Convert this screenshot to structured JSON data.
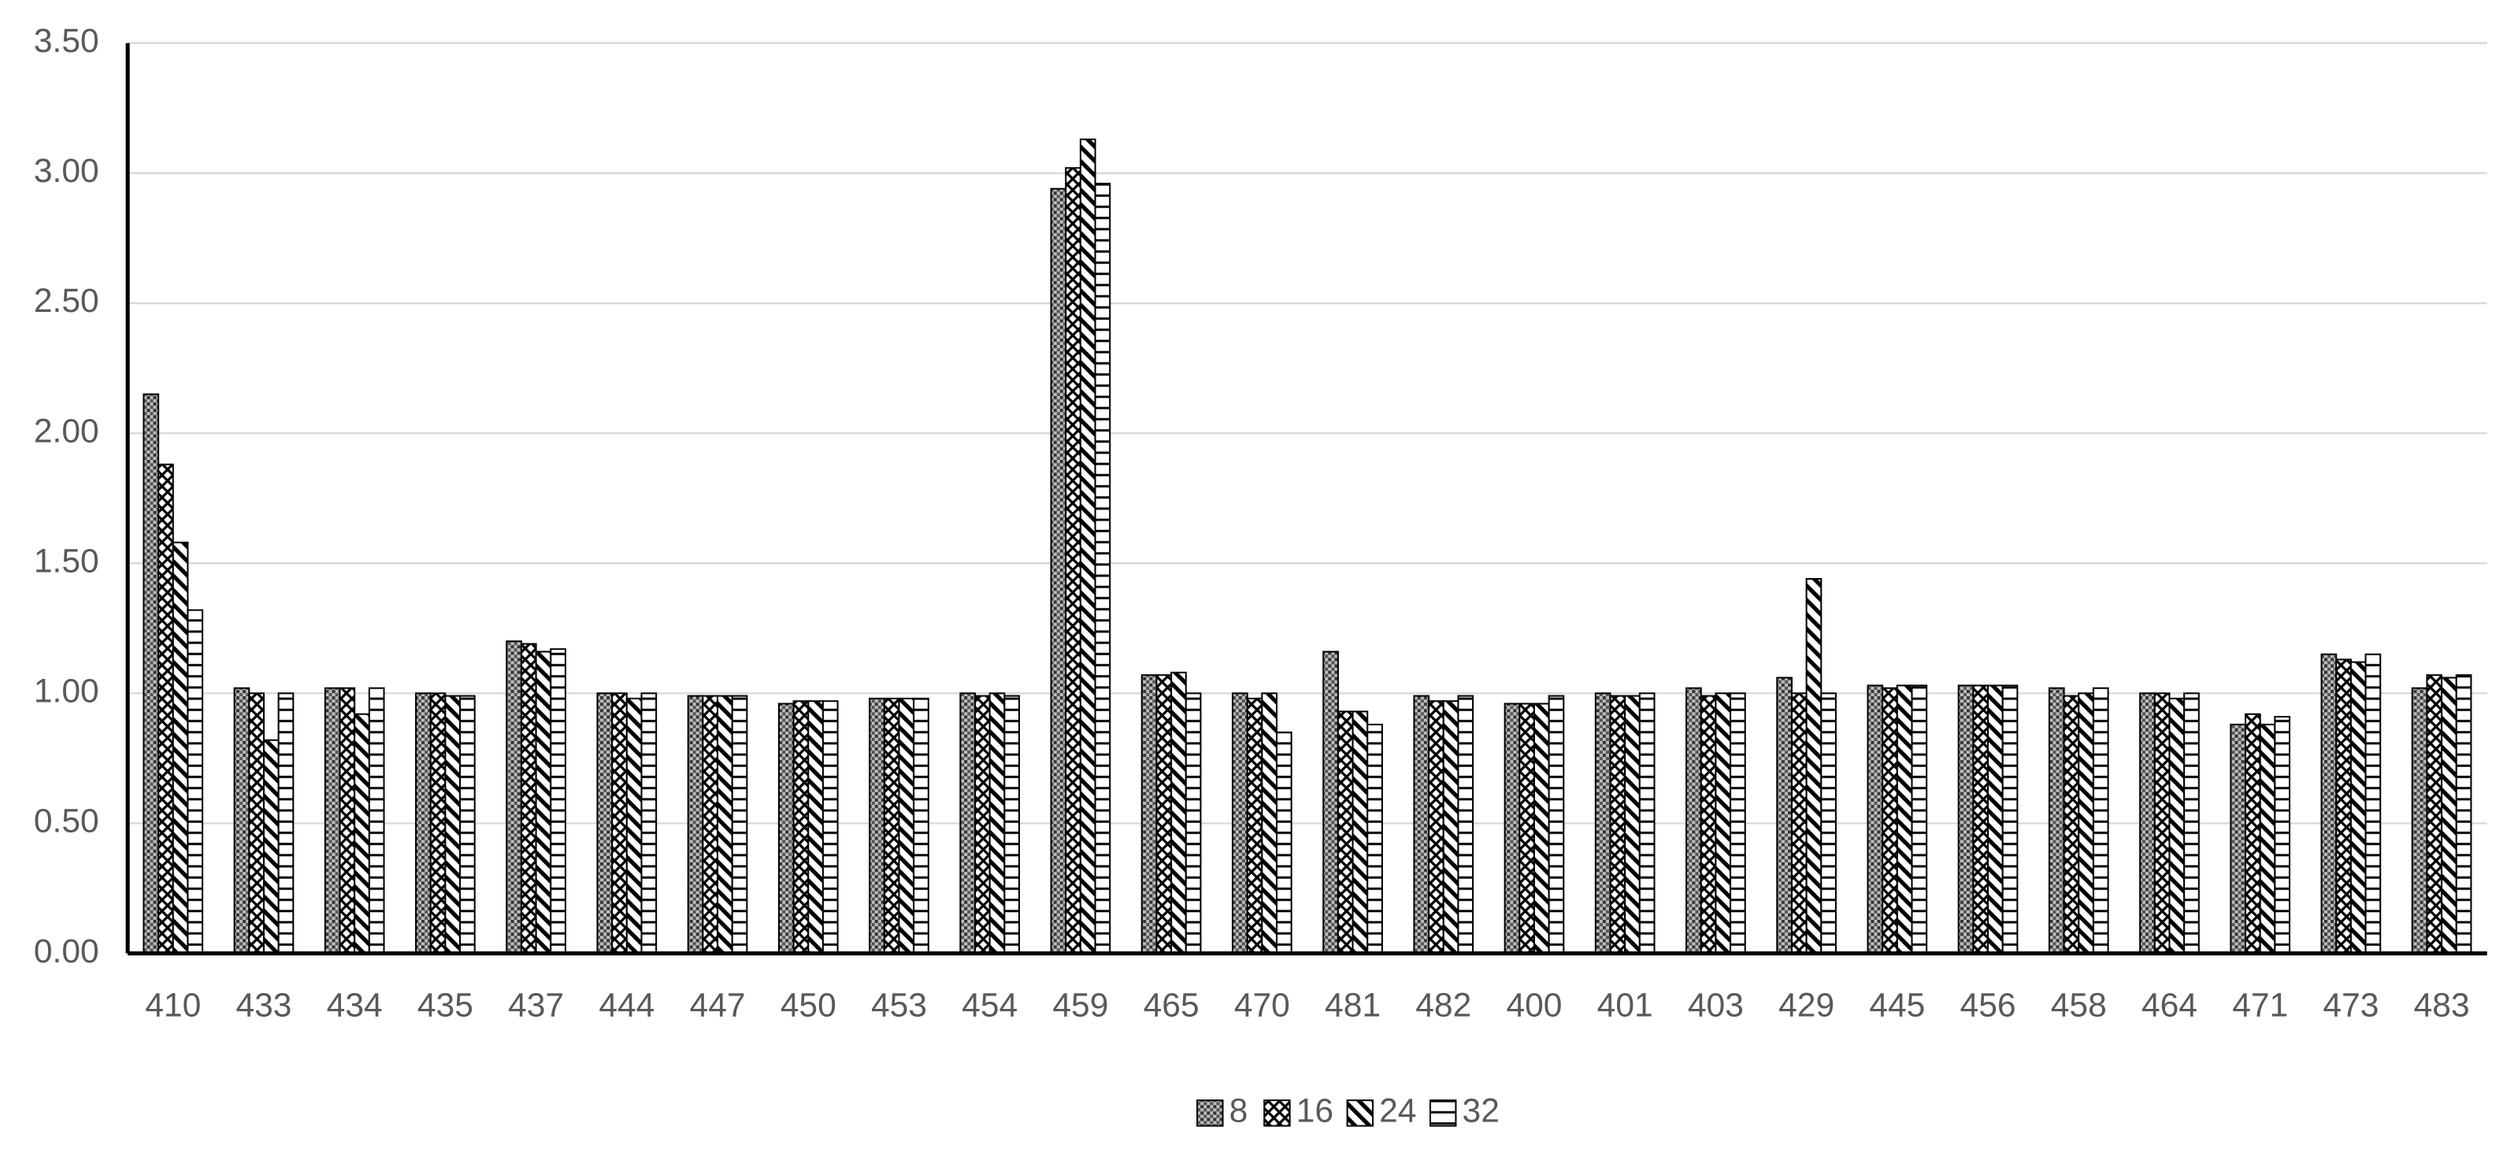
{
  "chart_data": {
    "type": "bar",
    "categories": [
      "410",
      "433",
      "434",
      "435",
      "437",
      "444",
      "447",
      "450",
      "453",
      "454",
      "459",
      "465",
      "470",
      "481",
      "482",
      "400",
      "401",
      "403",
      "429",
      "445",
      "456",
      "458",
      "464",
      "471",
      "473",
      "483"
    ],
    "series": [
      {
        "name": "8",
        "pattern": "dots",
        "values": [
          2.15,
          1.02,
          1.02,
          1.0,
          1.2,
          1.0,
          0.99,
          0.96,
          0.98,
          1.0,
          2.94,
          1.07,
          1.0,
          1.16,
          0.99,
          0.96,
          1.0,
          1.02,
          1.06,
          1.03,
          1.03,
          1.02,
          1.0,
          0.88,
          1.15,
          1.02
        ]
      },
      {
        "name": "16",
        "pattern": "cross",
        "values": [
          1.88,
          1.0,
          1.02,
          1.0,
          1.19,
          1.0,
          0.99,
          0.97,
          0.98,
          0.99,
          3.02,
          1.07,
          0.98,
          0.93,
          0.97,
          0.96,
          0.99,
          0.99,
          1.0,
          1.02,
          1.03,
          0.99,
          1.0,
          0.92,
          1.13,
          1.07
        ]
      },
      {
        "name": "24",
        "pattern": "diagonal",
        "values": [
          1.58,
          0.82,
          0.92,
          0.99,
          1.16,
          0.98,
          0.99,
          0.97,
          0.98,
          1.0,
          3.13,
          1.08,
          1.0,
          0.93,
          0.97,
          0.96,
          0.99,
          1.0,
          1.44,
          1.03,
          1.03,
          1.0,
          0.98,
          0.88,
          1.12,
          1.06
        ]
      },
      {
        "name": "32",
        "pattern": "grid",
        "values": [
          1.32,
          1.0,
          1.02,
          0.99,
          1.17,
          1.0,
          0.99,
          0.97,
          0.98,
          0.99,
          2.96,
          1.0,
          0.85,
          0.88,
          0.99,
          0.99,
          1.0,
          1.0,
          1.0,
          1.03,
          1.03,
          1.02,
          1.0,
          0.91,
          1.15,
          1.07
        ]
      }
    ],
    "ylim": [
      0,
      3.5
    ],
    "yticks": [
      {
        "value": 0,
        "label": "0.00"
      },
      {
        "value": 0.5,
        "label": "0.50"
      },
      {
        "value": 1,
        "label": "1.00"
      },
      {
        "value": 1.5,
        "label": "1.50"
      },
      {
        "value": 2,
        "label": "2.00"
      },
      {
        "value": 2.5,
        "label": "2.50"
      },
      {
        "value": 3,
        "label": "3.00"
      },
      {
        "value": 3.5,
        "label": "3.50"
      }
    ],
    "grid": true,
    "legend": "bottom"
  }
}
